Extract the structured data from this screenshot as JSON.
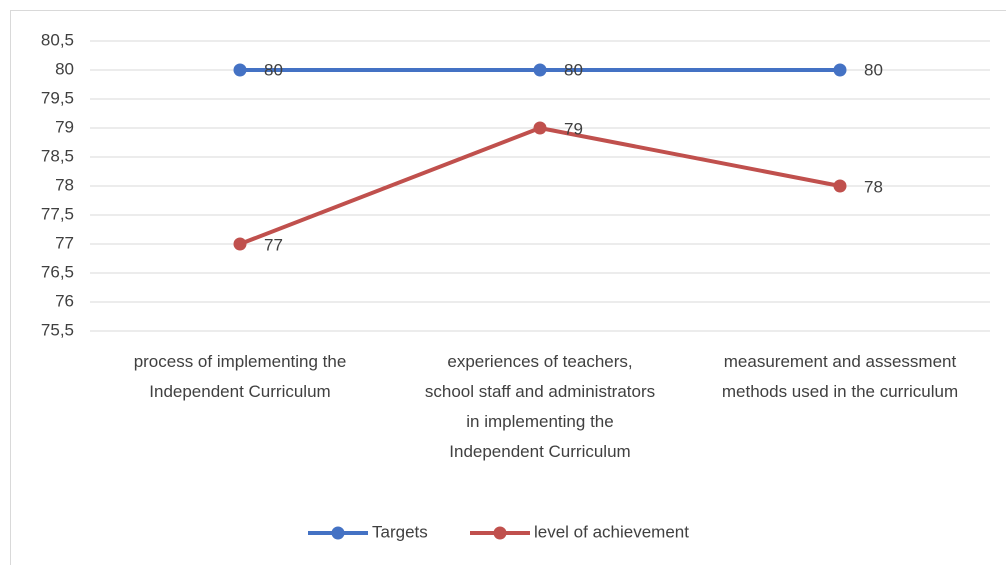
{
  "chart_data": {
    "type": "line",
    "categories": [
      "process of implementing  the Independent Curriculum",
      "experiences of teachers, school staff and administrators in implementing the Independent Curriculum",
      "measurement and assessment methods used in the curriculum"
    ],
    "series": [
      {
        "name": "Targets",
        "color": "#4472c4",
        "values": [
          80,
          80,
          80
        ]
      },
      {
        "name": "level of achievement",
        "color": "#c0504d",
        "values": [
          77,
          79,
          78
        ]
      }
    ],
    "ylim": [
      75.5,
      80.5
    ],
    "yticks": [
      {
        "value": 75.5,
        "label": "75,5"
      },
      76,
      {
        "value": 76.5,
        "label": "76,5"
      },
      77,
      {
        "value": 77.5,
        "label": "77,5"
      },
      78,
      {
        "value": 78.5,
        "label": "78,5"
      },
      79,
      {
        "value": 79.5,
        "label": "79,5"
      },
      80,
      {
        "value": 80.5,
        "label": "80,5"
      }
    ],
    "grid": true,
    "legend": "bottom"
  }
}
